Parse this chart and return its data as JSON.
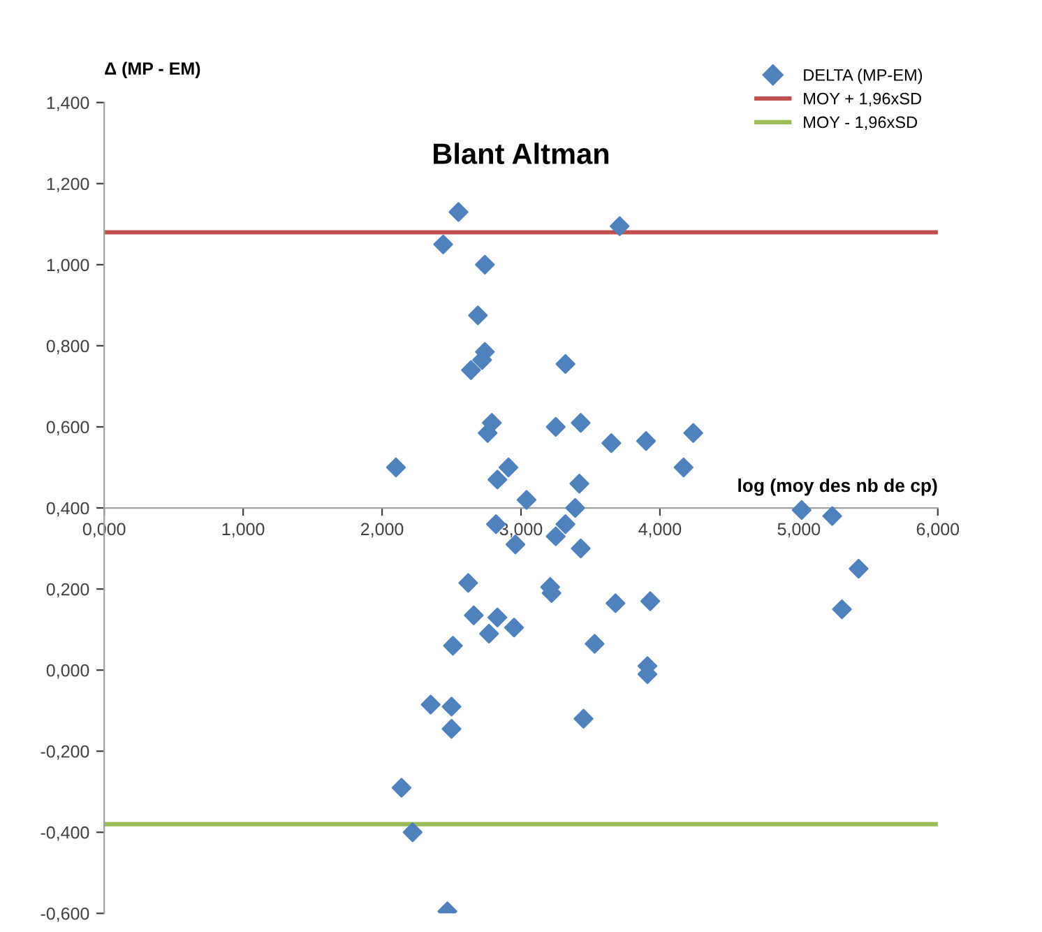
{
  "chart_data": {
    "type": "scatter",
    "title": "Blant Altman",
    "xlabel": "log (moy des nb de cp)",
    "ylabel": "Δ (MP - EM)",
    "series": [
      {
        "name": "DELTA (MP-EM)",
        "color": "#4f81bd",
        "marker": "diamond",
        "x": [
          2.55,
          3.71,
          2.44,
          2.74,
          2.69,
          2.74,
          2.72,
          2.64,
          3.32,
          2.79,
          2.76,
          3.25,
          3.43,
          3.65,
          3.9,
          2.1,
          2.91,
          2.83,
          3.04,
          3.42,
          3.39,
          2.82,
          3.32,
          2.96,
          3.25,
          3.43,
          4.24,
          4.17,
          5.02,
          5.24,
          5.43,
          5.31,
          2.62,
          3.21,
          3.22,
          3.68,
          3.93,
          2.66,
          2.83,
          2.77,
          2.95,
          2.51,
          3.53,
          3.91,
          3.91,
          2.35,
          2.5,
          2.5,
          3.45,
          2.14,
          2.22,
          2.47
        ],
        "values": [
          1.13,
          1.095,
          1.05,
          1.0,
          0.875,
          0.785,
          0.765,
          0.74,
          0.755,
          0.61,
          0.585,
          0.6,
          0.61,
          0.56,
          0.565,
          0.5,
          0.5,
          0.47,
          0.42,
          0.46,
          0.4,
          0.36,
          0.36,
          0.31,
          0.33,
          0.3,
          0.585,
          0.5,
          0.395,
          0.38,
          0.25,
          0.15,
          0.215,
          0.205,
          0.19,
          0.165,
          0.17,
          0.135,
          0.13,
          0.09,
          0.105,
          0.06,
          0.065,
          0.01,
          -0.01,
          -0.085,
          -0.09,
          -0.145,
          -0.12,
          -0.29,
          -0.4,
          -0.595
        ]
      }
    ],
    "ref_lines": [
      {
        "axis": "y",
        "value": 1.08,
        "label": "MOY + 1,96xSD",
        "color": "#c0504d",
        "line_style": "solid"
      },
      {
        "axis": "y",
        "value": -0.38,
        "label": "MOY - 1,96xSD",
        "color": "#9bbb59",
        "line_style": "solid"
      }
    ],
    "xlim": [
      0,
      6
    ],
    "ylim": [
      -0.6,
      1.4
    ],
    "xticks": [
      {
        "value": 0,
        "label": "0,000"
      },
      {
        "value": 1,
        "label": "1,000"
      },
      {
        "value": 2,
        "label": "2,000"
      },
      {
        "value": 3,
        "label": "3,000"
      },
      {
        "value": 4,
        "label": "4,000"
      },
      {
        "value": 5,
        "label": "5,000"
      },
      {
        "value": 6,
        "label": "6,000"
      }
    ],
    "yticks": [
      {
        "value": -0.6,
        "label": "-0,600"
      },
      {
        "value": -0.4,
        "label": "-0,400"
      },
      {
        "value": -0.2,
        "label": "-0,200"
      },
      {
        "value": 0,
        "label": "0,000"
      },
      {
        "value": 0.2,
        "label": "0,200"
      },
      {
        "value": 0.4,
        "label": "0,400"
      },
      {
        "value": 0.6,
        "label": "0,600"
      },
      {
        "value": 0.8,
        "label": "0,800"
      },
      {
        "value": 1.0,
        "label": "1,000"
      },
      {
        "value": 1.2,
        "label": "1,200"
      },
      {
        "value": 1.4,
        "label": "1,400"
      }
    ],
    "grid": false,
    "legend": "top right"
  }
}
